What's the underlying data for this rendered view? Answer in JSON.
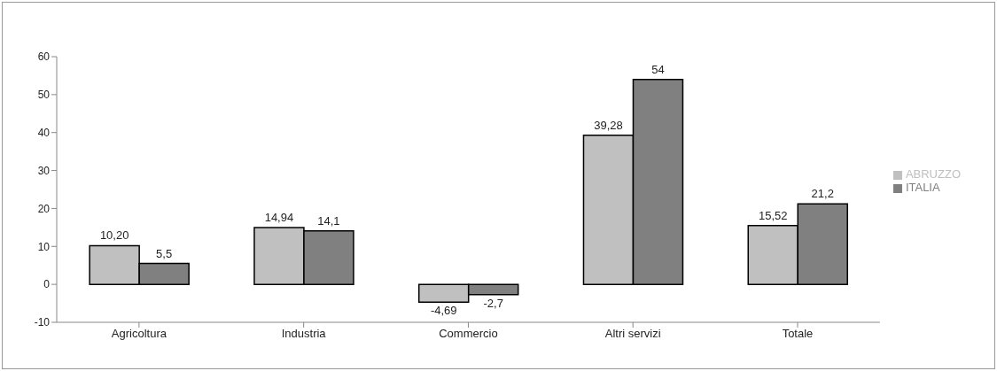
{
  "chart_data": {
    "type": "bar",
    "categories": [
      "Agricoltura",
      "Industria",
      "Commercio",
      "Altri servizi",
      "Totale"
    ],
    "series": [
      {
        "name": "ABRUZZO",
        "color": "#c0c0c0",
        "values": [
          10.2,
          14.94,
          -4.69,
          39.28,
          15.52
        ],
        "value_labels": [
          "10,20",
          "14,94",
          "-4,69",
          "39,28",
          "15,52"
        ]
      },
      {
        "name": "ITALIA",
        "color": "#808080",
        "values": [
          5.5,
          14.1,
          -2.7,
          54,
          21.2
        ],
        "value_labels": [
          "5,5",
          "14,1",
          "-2,7",
          "54",
          "21,2"
        ]
      }
    ],
    "ylim": [
      -10,
      60
    ],
    "yticks": [
      -10,
      0,
      10,
      20,
      30,
      40,
      50,
      60
    ],
    "grid": false,
    "legend": "right"
  }
}
